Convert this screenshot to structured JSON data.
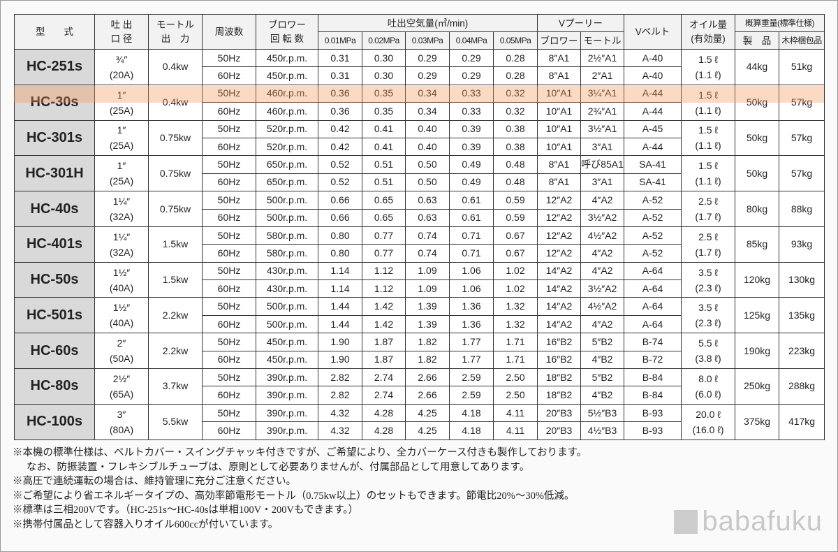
{
  "headers": {
    "model": "型　　式",
    "outlet": [
      "吐 出",
      "口 径"
    ],
    "motor": [
      "モートル",
      "出　力"
    ],
    "frequency": "周波数",
    "blower_rpm": [
      "ブロワー",
      "回 転 数"
    ],
    "flow_group": "吐出空気量(㎥/min)",
    "pressures": [
      "0.01MPa",
      "0.02MPa",
      "0.03MPa",
      "0.04MPa",
      "0.05MPa"
    ],
    "pulley_group": "Vプーリー",
    "pulley_blower": "ブロワー",
    "pulley_motor": "モートル",
    "belt": "Vベルト",
    "oil": [
      "オイル量",
      "(有効量)"
    ],
    "weight_group": "概算重量(標準仕様)",
    "weight_product": "製　品",
    "weight_crate": "木枠梱包品"
  },
  "highlight_color": "#f5965a",
  "models": [
    {
      "name": "HC-251s",
      "outlet": [
        "¾″",
        "(20A)"
      ],
      "motor": "0.4kw",
      "oil": [
        "1.5 ℓ",
        "(1.1 ℓ)"
      ],
      "product": "44kg",
      "crate": "51kg",
      "rows": [
        {
          "hz": "50Hz",
          "rpm": "450r.p.m.",
          "flows": [
            "0.31",
            "0.30",
            "0.29",
            "0.29",
            "0.28"
          ],
          "pb": "8″A1",
          "pm": "2½″A1",
          "belt": "A-40"
        },
        {
          "hz": "60Hz",
          "rpm": "450r.p.m.",
          "flows": [
            "0.31",
            "0.30",
            "0.29",
            "0.29",
            "0.28"
          ],
          "pb": "8″A1",
          "pm": "2″A1",
          "belt": "A-40"
        }
      ]
    },
    {
      "name": "HC-30s",
      "outlet": [
        "1″",
        "(25A)"
      ],
      "motor": "0.4kw",
      "oil": [
        "1.5 ℓ",
        "(1.1 ℓ)"
      ],
      "product": "50kg",
      "crate": "57kg",
      "rows": [
        {
          "hz": "50Hz",
          "rpm": "460r.p.m.",
          "flows": [
            "0.36",
            "0.35",
            "0.34",
            "0.33",
            "0.32"
          ],
          "pb": "10″A1",
          "pm": "3¼″A1",
          "belt": "A-44"
        },
        {
          "hz": "60Hz",
          "rpm": "460r.p.m.",
          "flows": [
            "0.36",
            "0.35",
            "0.34",
            "0.33",
            "0.32"
          ],
          "pb": "10″A1",
          "pm": "2¾″A1",
          "belt": "A-44"
        }
      ]
    },
    {
      "name": "HC-301s",
      "outlet": [
        "1″",
        "(25A)"
      ],
      "motor": "0.75kw",
      "oil": [
        "1.5 ℓ",
        "(1.1 ℓ)"
      ],
      "product": "50kg",
      "crate": "57kg",
      "rows": [
        {
          "hz": "50Hz",
          "rpm": "520r.p.m.",
          "flows": [
            "0.42",
            "0.41",
            "0.40",
            "0.39",
            "0.38"
          ],
          "pb": "10″A1",
          "pm": "3½″A1",
          "belt": "A-45"
        },
        {
          "hz": "60Hz",
          "rpm": "520r.p.m.",
          "flows": [
            "0.42",
            "0.41",
            "0.40",
            "0.39",
            "0.38"
          ],
          "pb": "10″A1",
          "pm": "3″A1",
          "belt": "A-44"
        }
      ]
    },
    {
      "name": "HC-301H",
      "outlet": [
        "1″",
        "(25A)"
      ],
      "motor": "0.75kw",
      "oil": [
        "1.5 ℓ",
        "(1.1 ℓ)"
      ],
      "product": "50kg",
      "crate": "57kg",
      "rows": [
        {
          "hz": "50Hz",
          "rpm": "650r.p.m.",
          "flows": [
            "0.52",
            "0.51",
            "0.50",
            "0.49",
            "0.48"
          ],
          "pb": "8″A1",
          "pm": "呼び85A1",
          "belt": "SA-41"
        },
        {
          "hz": "60Hz",
          "rpm": "650r.p.m.",
          "flows": [
            "0.52",
            "0.51",
            "0.50",
            "0.49",
            "0.48"
          ],
          "pb": "8″A1",
          "pm": "3″A1",
          "belt": "SA-41"
        }
      ]
    },
    {
      "name": "HC-40s",
      "outlet": [
        "1¼″",
        "(32A)"
      ],
      "motor": "0.75kw",
      "oil": [
        "2.5 ℓ",
        "(1.7 ℓ)"
      ],
      "product": "80kg",
      "crate": "88kg",
      "rows": [
        {
          "hz": "50Hz",
          "rpm": "500r.p.m.",
          "flows": [
            "0.66",
            "0.65",
            "0.63",
            "0.61",
            "0.59"
          ],
          "pb": "12″A2",
          "pm": "4″A2",
          "belt": "A-52"
        },
        {
          "hz": "60Hz",
          "rpm": "500r.p.m.",
          "flows": [
            "0.66",
            "0.65",
            "0.63",
            "0.61",
            "0.59"
          ],
          "pb": "12″A2",
          "pm": "3½″A2",
          "belt": "A-52"
        }
      ]
    },
    {
      "name": "HC-401s",
      "outlet": [
        "1¼″",
        "(32A)"
      ],
      "motor": "1.5kw",
      "oil": [
        "2.5 ℓ",
        "(1.7 ℓ)"
      ],
      "product": "85kg",
      "crate": "93kg",
      "rows": [
        {
          "hz": "50Hz",
          "rpm": "580r.p.m.",
          "flows": [
            "0.80",
            "0.77",
            "0.74",
            "0.71",
            "0.67"
          ],
          "pb": "12″A2",
          "pm": "4½″A2",
          "belt": "A-52"
        },
        {
          "hz": "60Hz",
          "rpm": "580r.p.m.",
          "flows": [
            "0.80",
            "0.77",
            "0.74",
            "0.71",
            "0.67"
          ],
          "pb": "12″A2",
          "pm": "4″A2",
          "belt": "A-52"
        }
      ]
    },
    {
      "name": "HC-50s",
      "outlet": [
        "1½″",
        "(40A)"
      ],
      "motor": "1.5kw",
      "oil": [
        "3.5 ℓ",
        "(2.3 ℓ)"
      ],
      "product": "120kg",
      "crate": "130kg",
      "rows": [
        {
          "hz": "50Hz",
          "rpm": "430r.p.m.",
          "flows": [
            "1.14",
            "1.12",
            "1.09",
            "1.06",
            "1.02"
          ],
          "pb": "14″A2",
          "pm": "4″A2",
          "belt": "A-64"
        },
        {
          "hz": "60Hz",
          "rpm": "430r.p.m.",
          "flows": [
            "1.14",
            "1.12",
            "1.09",
            "1.06",
            "1.02"
          ],
          "pb": "14″A2",
          "pm": "3½″A2",
          "belt": "A-64"
        }
      ]
    },
    {
      "name": "HC-501s",
      "outlet": [
        "1½″",
        "(40A)"
      ],
      "motor": "2.2kw",
      "oil": [
        "3.5 ℓ",
        "(2.3 ℓ)"
      ],
      "product": "125kg",
      "crate": "135kg",
      "rows": [
        {
          "hz": "50Hz",
          "rpm": "500r.p.m.",
          "flows": [
            "1.44",
            "1.42",
            "1.39",
            "1.36",
            "1.32"
          ],
          "pb": "14″A2",
          "pm": "4½″A2",
          "belt": "A-64"
        },
        {
          "hz": "60Hz",
          "rpm": "500r.p.m.",
          "flows": [
            "1.44",
            "1.42",
            "1.39",
            "1.36",
            "1.32"
          ],
          "pb": "14″A2",
          "pm": "4″A2",
          "belt": "A-64"
        }
      ]
    },
    {
      "name": "HC-60s",
      "outlet": [
        "2″",
        "(50A)"
      ],
      "motor": "2.2kw",
      "oil": [
        "5.5 ℓ",
        "(3.8 ℓ)"
      ],
      "product": "190kg",
      "crate": "223kg",
      "rows": [
        {
          "hz": "50Hz",
          "rpm": "450r.p.m.",
          "flows": [
            "1.90",
            "1.87",
            "1.82",
            "1.77",
            "1.71"
          ],
          "pb": "16″B2",
          "pm": "5″B2",
          "belt": "B-74"
        },
        {
          "hz": "60Hz",
          "rpm": "450r.p.m.",
          "flows": [
            "1.90",
            "1.87",
            "1.82",
            "1.77",
            "1.71"
          ],
          "pb": "16″B2",
          "pm": "4″B2",
          "belt": "B-72"
        }
      ]
    },
    {
      "name": "HC-80s",
      "outlet": [
        "2½″",
        "(65A)"
      ],
      "motor": "3.7kw",
      "oil": [
        "8.0 ℓ",
        "(6.0 ℓ)"
      ],
      "product": "250kg",
      "crate": "288kg",
      "rows": [
        {
          "hz": "50Hz",
          "rpm": "390r.p.m.",
          "flows": [
            "2.82",
            "2.74",
            "2.66",
            "2.59",
            "2.50"
          ],
          "pb": "18″B2",
          "pm": "5″B2",
          "belt": "B-84"
        },
        {
          "hz": "60Hz",
          "rpm": "390r.p.m.",
          "flows": [
            "2.82",
            "2.74",
            "2.66",
            "2.59",
            "2.50"
          ],
          "pb": "18″B2",
          "pm": "4″B2",
          "belt": "B-84"
        }
      ]
    },
    {
      "name": "HC-100s",
      "outlet": [
        "3″",
        "(80A)"
      ],
      "motor": "5.5kw",
      "oil": [
        "20.0 ℓ",
        "(16.0 ℓ)"
      ],
      "product": "375kg",
      "crate": "417kg",
      "rows": [
        {
          "hz": "50Hz",
          "rpm": "390r.p.m.",
          "flows": [
            "4.32",
            "4.28",
            "4.25",
            "4.18",
            "4.11"
          ],
          "pb": "20″B3",
          "pm": "5½″B3",
          "belt": "B-93"
        },
        {
          "hz": "60Hz",
          "rpm": "390r.p.m.",
          "flows": [
            "4.32",
            "4.28",
            "4.25",
            "4.18",
            "4.11"
          ],
          "pb": "20″B3",
          "pm": "4½″B3",
          "belt": "B-93"
        }
      ]
    }
  ],
  "notes": [
    "※本機の標準仕様は、ベルトカバー・スイングチャッキ付きですが、ご希望により、全カバーケース付きも製作しております。",
    "なお、防振装置・フレキシブルチューブは、原則として必要ありませんが、付属部品として用意してあります。",
    "※高圧で連続運転の場合は、維持管理に充分ご注意ください。",
    "※ご希望により省エネルギータイプの、高効率節電形モートル（0.75kw以上）のセットもできます。節電比20%〜30%低減。",
    "※標準は三相200Vです。（HC-251s〜HC-40sは単相100V・200Vもできます。）",
    "※携帯付属品として容器入りオイル600ccが付いています。"
  ],
  "logo": {
    "mark": "BABA",
    "word": "babafuku"
  }
}
